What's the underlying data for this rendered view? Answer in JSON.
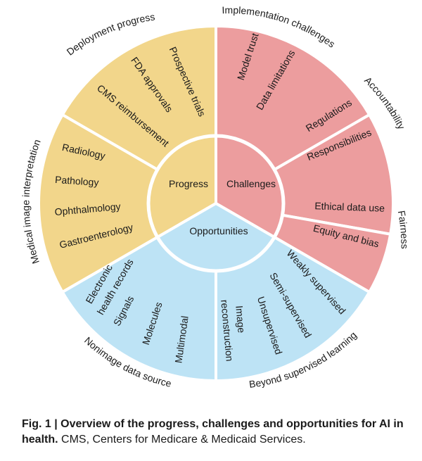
{
  "colors": {
    "progress": "#f2d68b",
    "challenges": "#ec9d9e",
    "opportunities": "#bde3f5",
    "divider": "#ffffff",
    "text": "#1a1a1a"
  },
  "center": {
    "progress": "Progress",
    "challenges": "Challenges",
    "opportunities": "Opportunities"
  },
  "outer_labels": {
    "deployment_progress": "Deployment progress",
    "implementation_challenges": "Implementation challenges",
    "accountability": "Accountability",
    "fairness": "Fairness",
    "beyond_supervised": "Beyond supervised learning",
    "nonimage": "Nonimage data source",
    "medical_image": "Medical image interpretation"
  },
  "items": {
    "prospective_trials": "Prospective trials",
    "fda_approvals": "FDA approvals",
    "cms_reimbursement": "CMS reimbursement",
    "model_trust": "Model trust",
    "data_limitations": "Data limitations",
    "regulations": "Regulations",
    "responsibilities": "Responsibilities",
    "ethical_data_use": "Ethical data use",
    "equity_and_bias": "Equity and bias",
    "weakly_supervised": "Weakly supervised",
    "semi_supervised": "Semi-supervised",
    "unsupervised": "Unsupervised",
    "image_reconstruction_1": "Image",
    "image_reconstruction_2": "reconstruction",
    "ehr_1": "Electronic",
    "ehr_2": "health records",
    "signals": "Signals",
    "molecules": "Molecules",
    "multimodal": "Multimodal",
    "radiology": "Radiology",
    "pathology": "Pathology",
    "ophthalmology": "Ophthalmology",
    "gastroenterology": "Gastroenterology"
  },
  "caption": {
    "bold": "Fig. 1 | Overview of the progress, challenges and opportunities for AI in health.",
    "text": " CMS, Centers for Medicare & Medicaid Services."
  }
}
